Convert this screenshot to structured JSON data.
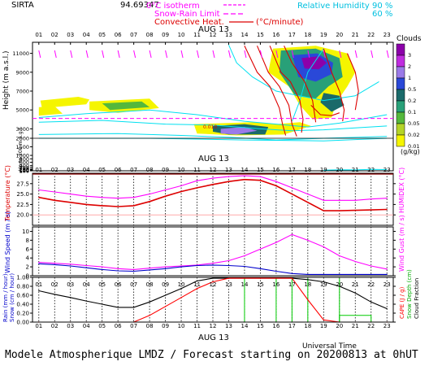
{
  "header": {
    "station": "SIRTA",
    "overlap": "94.69347",
    "legend": [
      "0°C isotherm",
      "Snow-Rain Limit",
      "Convective Heat.",
      "(°C/minute)"
    ],
    "rh_label": "Relative Humidity",
    "rh_values": [
      "90 %",
      "60 %"
    ]
  },
  "date_label": "AUG 13",
  "hours": [
    "01",
    "02",
    "03",
    "04",
    "05",
    "06",
    "07",
    "08",
    "09",
    "10",
    "11",
    "12",
    "13",
    "14",
    "15",
    "16",
    "17",
    "18",
    "19",
    "20",
    "21",
    "22",
    "23"
  ],
  "xlabel": "Universal Time",
  "footer": "Modele Atmospherique LMDZ / Forecast starting on 20200813 at 0hUT",
  "colors": {
    "isotherm": "#ff00ff",
    "convective": "#dd0000",
    "rh": "#00e0f0",
    "temperature": "#dd0000",
    "humidex": "#ff00ff",
    "wind": "#0000cc",
    "gust": "#ff00ff",
    "precip_rain": "#000000",
    "cape": "#ff0000",
    "cloud_frac": "#000000",
    "snow": "#00cc00"
  },
  "chart_data": [
    {
      "type": "heatmap",
      "ylabel": "Height (m a.s.l.)",
      "ylabel_note": "Up to 200 m a.g.l.",
      "y_ticks": [
        "11000",
        "9000",
        "7000",
        "5000",
        "3000",
        "2000",
        "1500",
        "1000",
        "800",
        "600",
        "400",
        "300",
        "200",
        "180",
        "160",
        "140",
        "120",
        "100"
      ],
      "y_top": 12000,
      "y_split": 2000,
      "y_bottom": 100,
      "colorbar_title": "Clouds",
      "colorbar_unit": "(g/kg)",
      "colorbar_levels": [
        "3",
        "2",
        "1",
        "0.5",
        "0.2",
        "0.1",
        "0.05",
        "0.02",
        "0.01"
      ],
      "colorbar_colors": [
        "#8c00aa",
        "#c02ce0",
        "#9b7ae8",
        "#2a48d8",
        "#1a6a6a",
        "#28a078",
        "#54b83c",
        "#b4d428",
        "#f5f500"
      ],
      "isotherm_height": 4100,
      "convective_label": "0.010",
      "clouds": [
        {
          "level": 0,
          "pts": [
            [
              1.1,
              6000
            ],
            [
              3.5,
              6400
            ],
            [
              4.2,
              6100
            ],
            [
              4,
              5600
            ],
            [
              1.2,
              5200
            ]
          ]
        },
        {
          "level": 0,
          "pts": [
            [
              1,
              5300
            ],
            [
              2,
              5400
            ],
            [
              2.5,
              4600
            ],
            [
              1,
              4400
            ]
          ]
        },
        {
          "level": 0,
          "pts": [
            [
              4.2,
              5900
            ],
            [
              8,
              6200
            ],
            [
              8.6,
              5200
            ],
            [
              6,
              4700
            ],
            [
              4.2,
              5000
            ]
          ]
        },
        {
          "level": 2,
          "pts": [
            [
              5,
              5700
            ],
            [
              7.5,
              5900
            ],
            [
              8,
              5300
            ],
            [
              5.5,
              5000
            ]
          ]
        },
        {
          "level": 0,
          "pts": [
            [
              10.8,
              3500
            ],
            [
              14.5,
              3700
            ],
            [
              16,
              3500
            ],
            [
              17.5,
              3700
            ],
            [
              18.2,
              3300
            ],
            [
              16.5,
              2400
            ],
            [
              13.5,
              2300
            ],
            [
              11,
              2500
            ]
          ]
        },
        {
          "level": 4,
          "pts": [
            [
              12,
              3300
            ],
            [
              14,
              3500
            ],
            [
              15.5,
              3200
            ],
            [
              15.3,
              2400
            ],
            [
              13,
              2400
            ],
            [
              12,
              2700
            ]
          ]
        },
        {
          "level": 6,
          "pts": [
            [
              12.5,
              3000
            ],
            [
              14,
              3200
            ],
            [
              14.8,
              2800
            ],
            [
              13.5,
              2400
            ],
            [
              12.5,
              2500
            ]
          ]
        },
        {
          "level": 0,
          "pts": [
            [
              15.8,
              11500
            ],
            [
              18.5,
              11800
            ],
            [
              20.5,
              11000
            ],
            [
              21,
              9000
            ],
            [
              20.5,
              7500
            ],
            [
              19.8,
              5800
            ],
            [
              19.5,
              4200
            ],
            [
              18.3,
              4000
            ],
            [
              17.5,
              5500
            ],
            [
              16.8,
              7500
            ],
            [
              15.5,
              9000
            ]
          ]
        },
        {
          "level": 3,
          "pts": [
            [
              16.3,
              11300
            ],
            [
              18.5,
              11500
            ],
            [
              20,
              10500
            ],
            [
              20.2,
              8500
            ],
            [
              19.3,
              7500
            ],
            [
              18.5,
              6200
            ],
            [
              17.2,
              6500
            ],
            [
              16.2,
              9000
            ]
          ]
        },
        {
          "level": 5,
          "pts": [
            [
              17,
              10800
            ],
            [
              18.6,
              11000
            ],
            [
              19.6,
              10000
            ],
            [
              19.5,
              8800
            ],
            [
              18.5,
              8000
            ],
            [
              17.4,
              8500
            ]
          ]
        },
        {
          "level": 8,
          "pts": [
            [
              17.6,
              10500
            ],
            [
              18.7,
              10700
            ],
            [
              19.2,
              10000
            ],
            [
              18.7,
              9300
            ],
            [
              17.8,
              9400
            ]
          ]
        },
        {
          "level": 4,
          "pts": [
            [
              19,
              6800
            ],
            [
              20,
              6500
            ],
            [
              20.3,
              5500
            ],
            [
              19.5,
              4800
            ],
            [
              18.8,
              5800
            ]
          ]
        }
      ],
      "rh_lines": [
        [
          [
            1,
            4200
          ],
          [
            4,
            4600
          ],
          [
            8,
            5000
          ],
          [
            11,
            4500
          ],
          [
            14,
            3800
          ],
          [
            16,
            3500
          ],
          [
            18,
            3200
          ],
          [
            20,
            3600
          ],
          [
            23,
            4500
          ]
        ],
        [
          [
            1,
            3700
          ],
          [
            5,
            3900
          ],
          [
            9,
            3500
          ],
          [
            12,
            3400
          ],
          [
            15,
            3000
          ],
          [
            17,
            2800
          ],
          [
            19,
            2900
          ],
          [
            23,
            3300
          ]
        ],
        [
          [
            1,
            2400
          ],
          [
            6,
            2500
          ],
          [
            10,
            2300
          ],
          [
            13,
            2100
          ],
          [
            16,
            1900
          ],
          [
            19,
            2000
          ],
          [
            23,
            2200
          ]
        ],
        [
          [
            1,
            2000
          ],
          [
            8,
            2000
          ],
          [
            14,
            1900
          ],
          [
            19,
            1850
          ],
          [
            23,
            2000
          ]
        ],
        [
          [
            13,
            11900
          ],
          [
            13.5,
            10000
          ],
          [
            14.5,
            8500
          ],
          [
            16,
            7000
          ],
          [
            19,
            6000
          ],
          [
            21,
            6500
          ],
          [
            22.5,
            8000
          ]
        ],
        [
          [
            17,
            3800
          ],
          [
            17.5,
            6000
          ],
          [
            18,
            9000
          ],
          [
            19,
            11500
          ]
        ],
        [
          [
            19,
            140
          ],
          [
            20,
            160
          ],
          [
            21,
            150
          ],
          [
            22,
            180
          ],
          [
            23,
            170
          ]
        ]
      ],
      "convective_lines": [
        [
          [
            14,
            11800
          ],
          [
            14.8,
            9000
          ],
          [
            15.6,
            7500
          ],
          [
            16.2,
            5200
          ],
          [
            16.4,
            3500
          ],
          [
            16.6,
            2300
          ]
        ],
        [
          [
            14.8,
            11800
          ],
          [
            15.5,
            9000
          ],
          [
            16.2,
            7500
          ],
          [
            16.8,
            5500
          ],
          [
            17,
            3500
          ],
          [
            17.3,
            2200
          ]
        ],
        [
          [
            15.6,
            11800
          ],
          [
            16.3,
            9000
          ],
          [
            16.9,
            8000
          ],
          [
            17.5,
            6000
          ],
          [
            17.7,
            4000
          ],
          [
            17.6,
            2600
          ]
        ],
        [
          [
            16.5,
            11800
          ],
          [
            17,
            10000
          ],
          [
            17.8,
            8000
          ],
          [
            18.3,
            6000
          ],
          [
            18.5,
            3700
          ]
        ],
        [
          [
            19,
            11500
          ],
          [
            19.5,
            9000
          ],
          [
            20,
            7000
          ],
          [
            20.3,
            5000
          ],
          [
            20.2,
            3800
          ]
        ],
        [
          [
            20.5,
            11000
          ],
          [
            21,
            9000
          ],
          [
            21.2,
            7000
          ],
          [
            21,
            5000
          ]
        ],
        [
          [
            18.2,
            5500
          ],
          [
            18.8,
            4500
          ],
          [
            19.5,
            4400
          ],
          [
            20,
            4700
          ]
        ]
      ]
    },
    {
      "type": "line",
      "ylabel_left": "Temperature (°C)",
      "ylabel_right": "HUMIDEX (°C)",
      "ylim": [
        17.5,
        30
      ],
      "y_ticks": [
        20,
        22.5,
        25,
        27.5
      ],
      "x": [
        1,
        2,
        3,
        4,
        5,
        6,
        7,
        8,
        9,
        10,
        11,
        12,
        13,
        14,
        15,
        16,
        17,
        18,
        19,
        20,
        21,
        22,
        23
      ],
      "series": [
        {
          "key": "humidex",
          "values": [
            26.0,
            25.5,
            25.0,
            24.5,
            24.2,
            24.0,
            24.2,
            25.0,
            26.0,
            27.0,
            28.2,
            28.8,
            29.2,
            29.4,
            29.2,
            28.0,
            26.5,
            25.0,
            23.5,
            23.5,
            23.5,
            23.8,
            24.0
          ]
        },
        {
          "key": "temperature",
          "values": [
            24.2,
            23.5,
            23.0,
            22.5,
            22.2,
            22.0,
            22.2,
            23.2,
            24.5,
            25.6,
            26.5,
            27.3,
            28.0,
            28.5,
            28.3,
            27.0,
            25.0,
            23.0,
            21.0,
            21.0,
            21.1,
            21.2,
            21.3
          ]
        }
      ]
    },
    {
      "type": "line",
      "ylabel_left": "Wind Speed (m / s)",
      "ylabel_right": "Wind Gust (m / s)",
      "ylim": [
        0,
        11
      ],
      "y_ticks": [
        0,
        2,
        4,
        6,
        8,
        10
      ],
      "x": [
        1,
        2,
        3,
        4,
        5,
        6,
        7,
        8,
        9,
        10,
        11,
        12,
        13,
        14,
        15,
        16,
        17,
        18,
        19,
        20,
        21,
        22,
        23
      ],
      "series": [
        {
          "key": "gust",
          "values": [
            3.0,
            2.8,
            2.6,
            2.3,
            2.0,
            1.6,
            1.4,
            1.7,
            2.0,
            2.2,
            2.4,
            2.8,
            3.4,
            4.5,
            6.0,
            7.5,
            9.3,
            8.0,
            6.5,
            4.5,
            3.2,
            2.2,
            1.5
          ]
        },
        {
          "key": "wind",
          "values": [
            2.7,
            2.5,
            2.2,
            1.8,
            1.4,
            1.1,
            1.0,
            1.3,
            1.6,
            2.0,
            2.3,
            2.4,
            2.3,
            2.1,
            1.6,
            1.0,
            0.5,
            0.3,
            0.3,
            0.3,
            0.3,
            0.3,
            0.3
          ]
        }
      ]
    },
    {
      "type": "line",
      "ylabel_left_a": "Rain (mm / hour)",
      "ylabel_left_b": "Snow (cm / hour)",
      "ylabel_right_a": "CAPE (J / g)",
      "ylabel_right_b": "Snow Depth (cm)",
      "ylabel_right_c": "Cloud Fraction",
      "ylim": [
        0,
        1.0
      ],
      "y_ticks": [
        "0.00",
        "0.20",
        "0.40",
        "0.60",
        "0.80",
        "1.00"
      ],
      "x": [
        1,
        2,
        3,
        4,
        5,
        6,
        7,
        8,
        9,
        10,
        11,
        12,
        13,
        14,
        15,
        16,
        17,
        18,
        19,
        20,
        21,
        22,
        23
      ],
      "series": [
        {
          "key": "cloud_frac",
          "values": [
            0.7,
            0.62,
            0.55,
            0.47,
            0.4,
            0.33,
            0.33,
            0.45,
            0.6,
            0.75,
            0.92,
            0.98,
            0.98,
            0.98,
            0.98,
            0.98,
            0.98,
            0.95,
            0.9,
            0.8,
            0.65,
            0.45,
            0.3
          ]
        },
        {
          "key": "cape",
          "values": [
            0,
            0,
            0,
            0,
            0,
            0,
            0,
            0.15,
            0.35,
            0.55,
            0.75,
            0.9,
            0.98,
            0.98,
            0.98,
            0.98,
            0.98,
            0.5,
            0.05,
            0,
            0,
            0,
            0
          ]
        },
        {
          "key": "precip_rain",
          "values": [
            0,
            0,
            0,
            0,
            0,
            0,
            0,
            0,
            0,
            0,
            0,
            0,
            0,
            0,
            0,
            0,
            0,
            0,
            0,
            0,
            0,
            0,
            0
          ]
        }
      ],
      "rain_bars": [
        14,
        16,
        17,
        18,
        20
      ],
      "rain_step": [
        20,
        0.15,
        22,
        0.15
      ]
    }
  ]
}
